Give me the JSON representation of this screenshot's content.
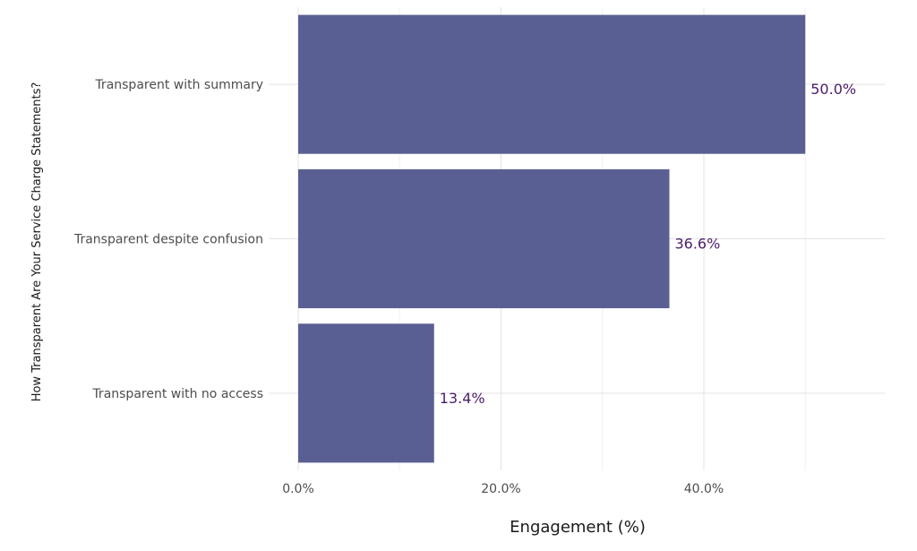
{
  "chart_data": {
    "type": "bar",
    "orientation": "horizontal",
    "categories": [
      "Transparent with summary",
      "Transparent despite confusion",
      "Transparent with no access"
    ],
    "values": [
      50.0,
      36.6,
      13.4
    ],
    "data_labels": [
      "50.0%",
      "36.6%",
      "13.4%"
    ],
    "xlabel": "Engagement (%)",
    "ylabel": "How Transparent Are Your Service Charge Statements?",
    "xlim": [
      0,
      58
    ],
    "x_ticks": [
      0,
      20,
      40
    ],
    "x_tick_labels": [
      "0.0%",
      "20.0%",
      "40.0%"
    ],
    "grid": true,
    "legend": "none",
    "bar_color": "#5a5f93",
    "label_color": "#4b1d6b"
  }
}
